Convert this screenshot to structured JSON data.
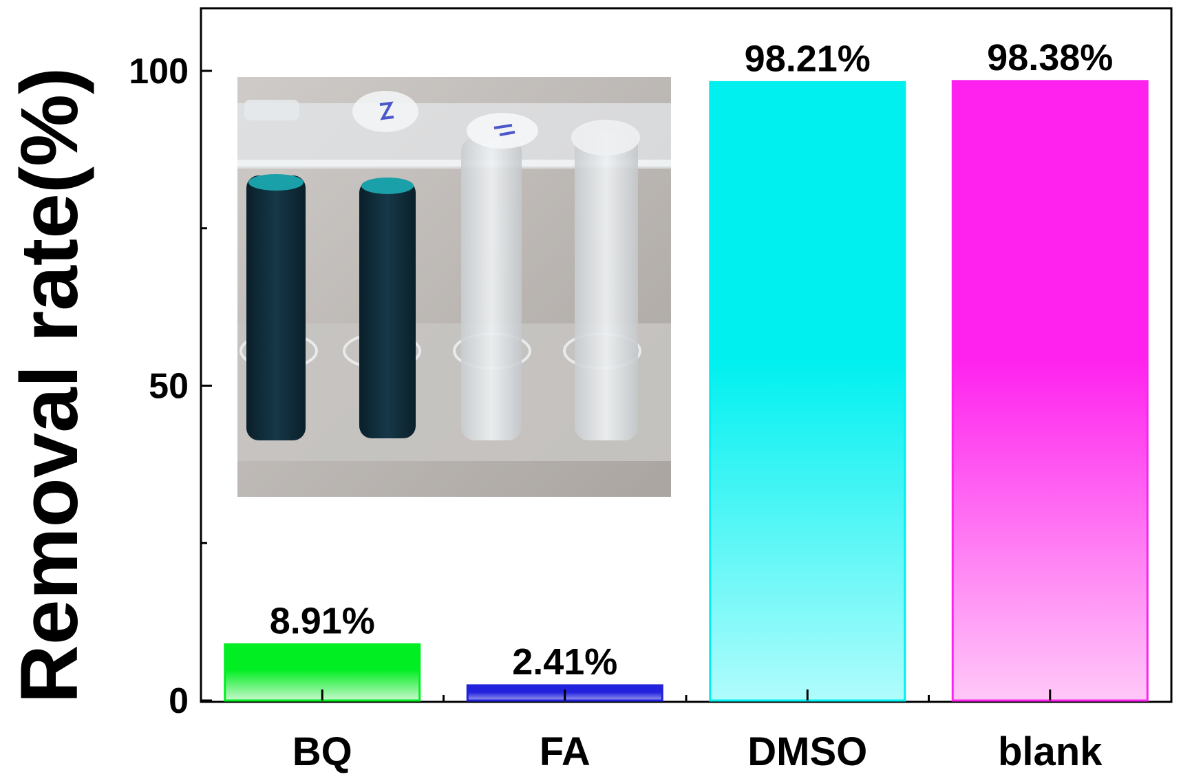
{
  "chart_data": {
    "type": "bar",
    "title": "",
    "xlabel": "",
    "ylabel": "Removal rate(%)",
    "ylim": [
      0,
      100
    ],
    "yticks_major": [
      0,
      50,
      100
    ],
    "yticks_minor": [
      25,
      75
    ],
    "ytick_labels": [
      "0",
      "50",
      "100"
    ],
    "categories": [
      "BQ",
      "FA",
      "DMSO",
      "blank"
    ],
    "values": [
      8.91,
      2.41,
      98.21,
      98.38
    ],
    "data_labels": [
      "8.91%",
      "2.41%",
      "98.21%",
      "98.38%"
    ],
    "bar_colors": [
      "#00ee22",
      "#2222dd",
      "#00f0f0",
      "#ff22ee"
    ],
    "bar_fade_colors": [
      "#c8f8cc",
      "#9a9af0",
      "#b0fcfc",
      "#ffc8f8"
    ],
    "grid": false,
    "legend": "none",
    "inset": {
      "type": "photo",
      "subject": "test tubes in rack",
      "content_colors": {
        "dark_solution": "#0e2a38",
        "clear_solution": "#dfe3e6",
        "background": "#bdb8b4"
      }
    }
  }
}
